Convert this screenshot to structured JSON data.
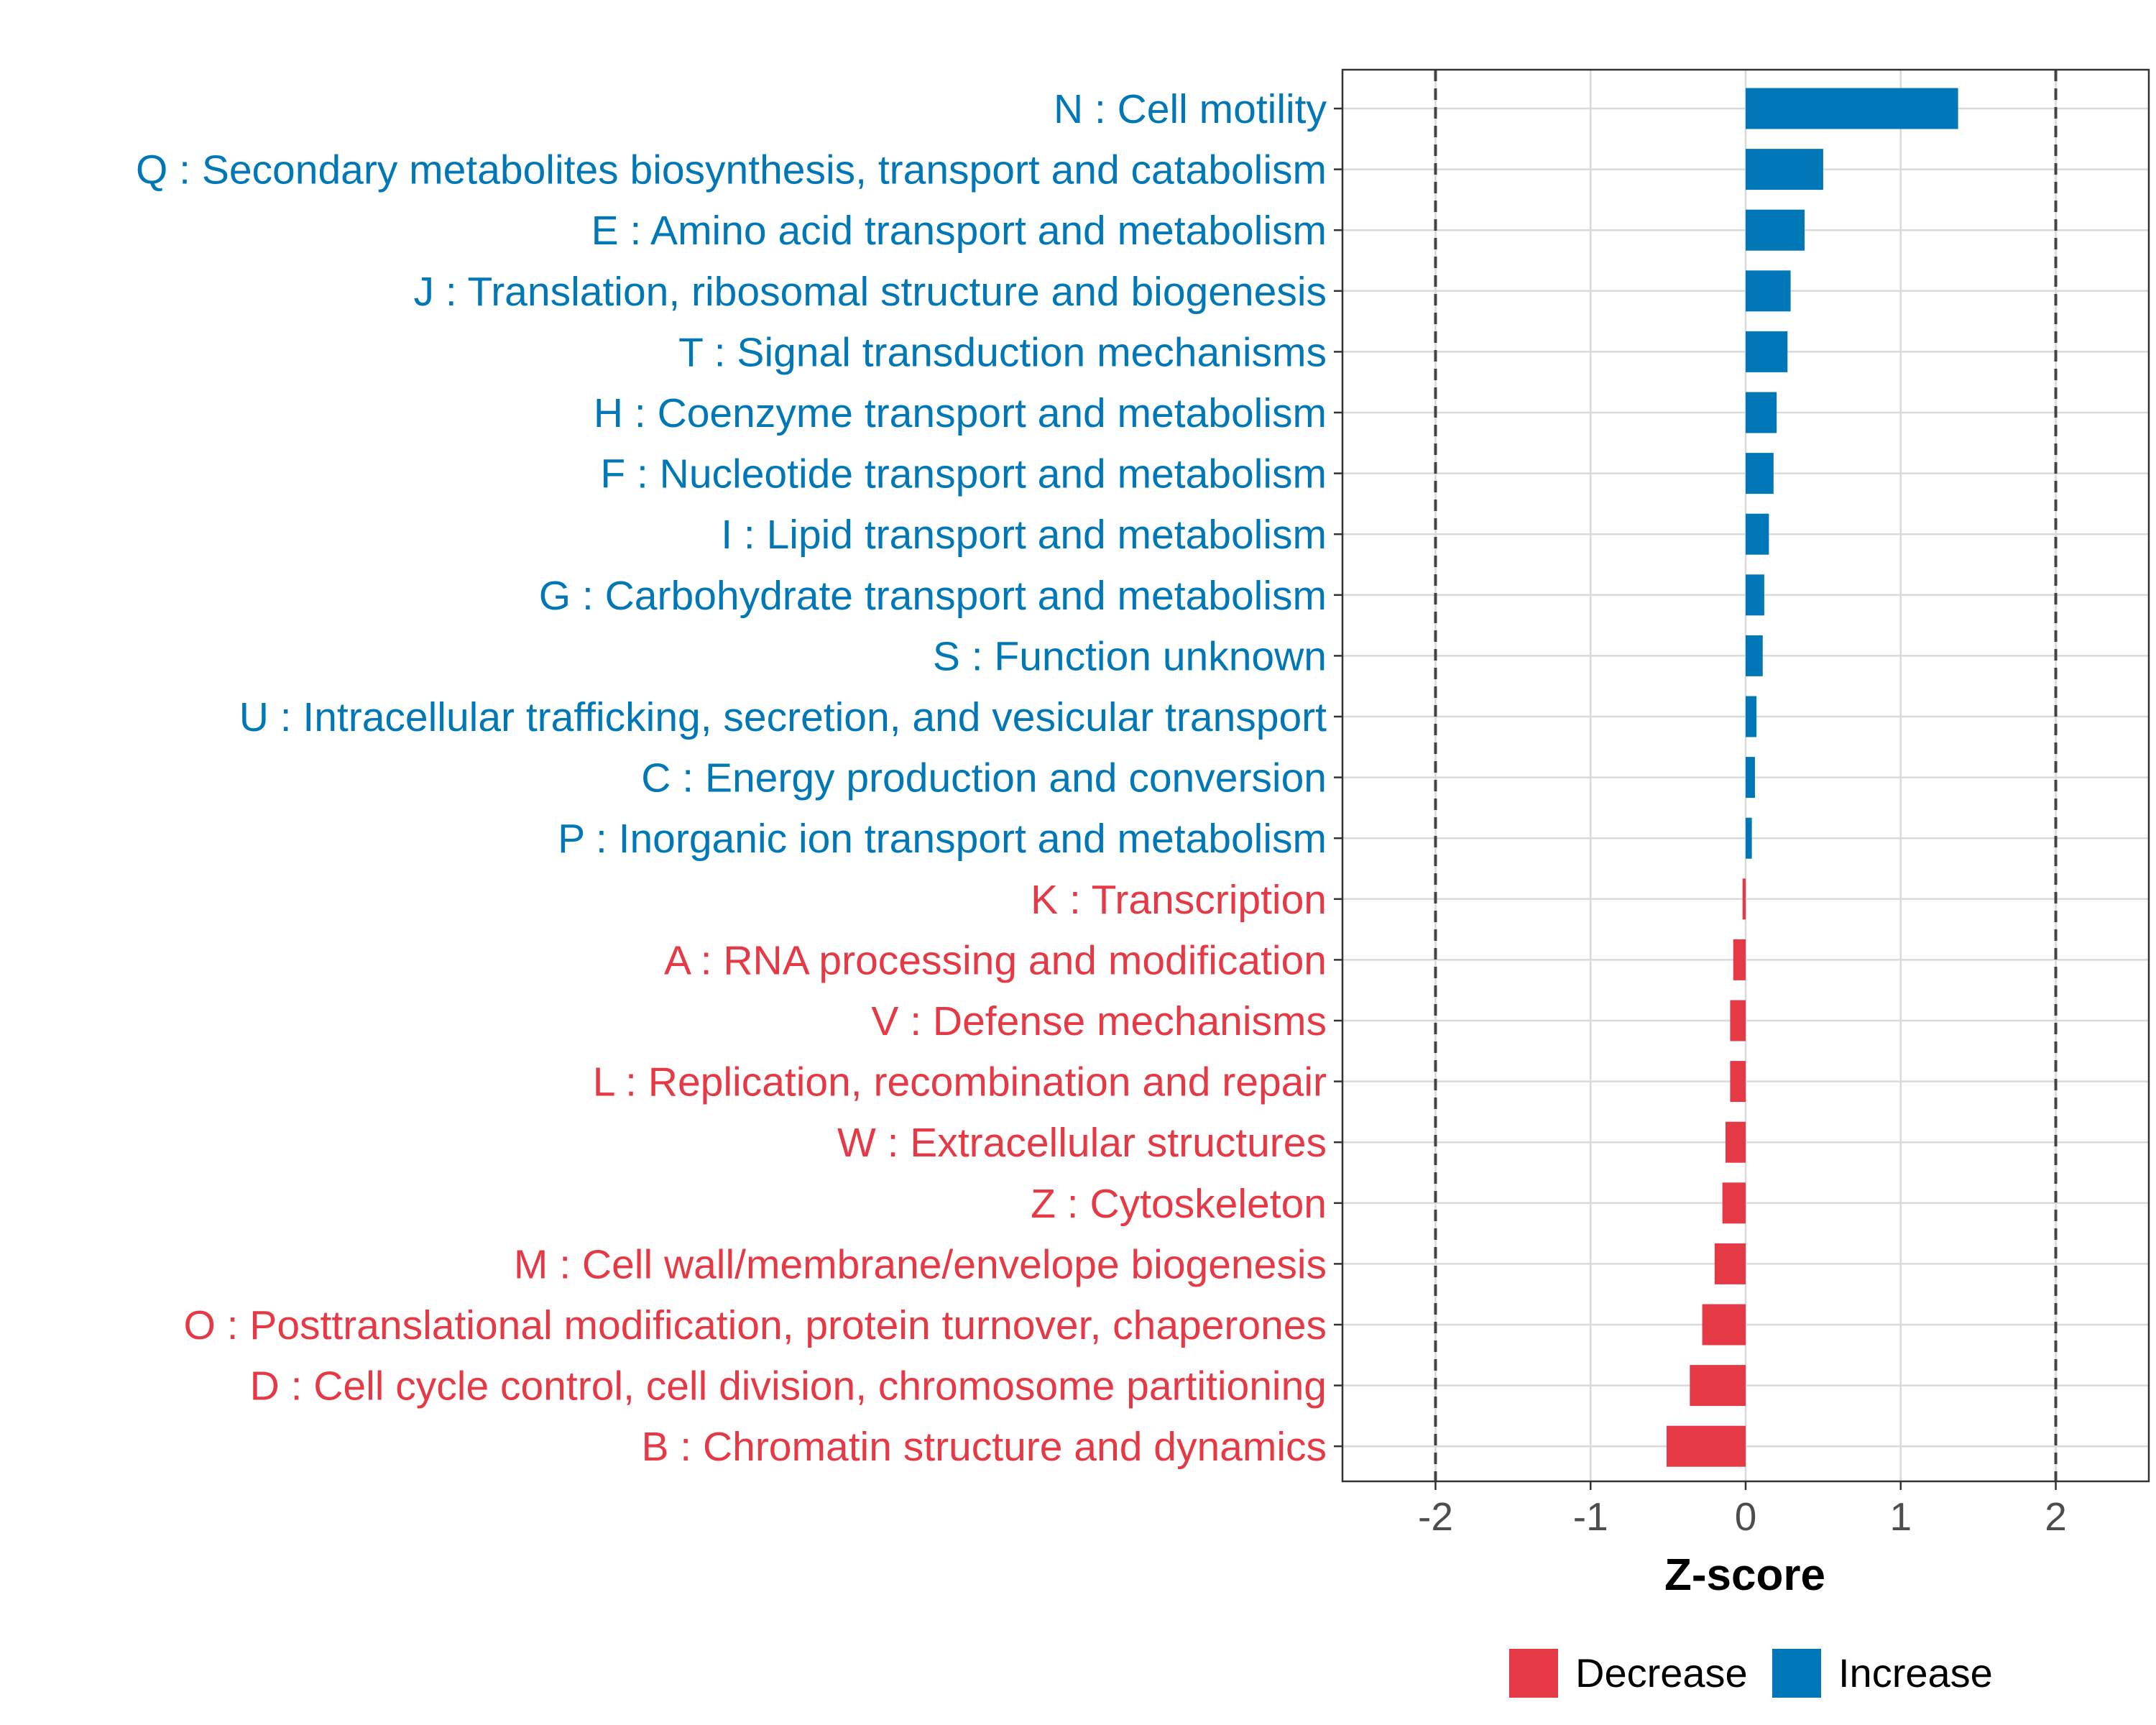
{
  "chart_data": {
    "type": "bar",
    "orientation": "horizontal",
    "title": "",
    "xlabel": "Z-score",
    "ylabel": "",
    "xlim": [
      -2.6,
      2.6
    ],
    "x_ticks": [
      {
        "value": -2,
        "label": "-2"
      },
      {
        "value": -1,
        "label": "-1"
      },
      {
        "value": 0,
        "label": "0"
      },
      {
        "value": 1,
        "label": "1"
      },
      {
        "value": 2,
        "label": "2"
      }
    ],
    "threshold_lines": [
      -2,
      2
    ],
    "grid": true,
    "legend": {
      "position": "bottom",
      "items": [
        {
          "label": "Decrease",
          "color": "#E63946"
        },
        {
          "label": "Increase",
          "color": "#0077B6"
        }
      ]
    },
    "colors": {
      "Increase": "#0077B6",
      "Decrease": "#E63946"
    },
    "categories": [
      {
        "label": "N : Cell motility",
        "value": 1.37,
        "group": "Increase"
      },
      {
        "label": "Q : Secondary metabolites biosynthesis, transport and catabolism",
        "value": 0.5,
        "group": "Increase"
      },
      {
        "label": "E : Amino acid transport and metabolism",
        "value": 0.38,
        "group": "Increase"
      },
      {
        "label": "J : Translation, ribosomal structure and biogenesis",
        "value": 0.29,
        "group": "Increase"
      },
      {
        "label": "T : Signal transduction mechanisms",
        "value": 0.27,
        "group": "Increase"
      },
      {
        "label": "H : Coenzyme transport and metabolism",
        "value": 0.2,
        "group": "Increase"
      },
      {
        "label": "F : Nucleotide transport and metabolism",
        "value": 0.18,
        "group": "Increase"
      },
      {
        "label": "I : Lipid transport and metabolism",
        "value": 0.15,
        "group": "Increase"
      },
      {
        "label": "G : Carbohydrate transport and metabolism",
        "value": 0.12,
        "group": "Increase"
      },
      {
        "label": "S : Function unknown",
        "value": 0.11,
        "group": "Increase"
      },
      {
        "label": "U : Intracellular trafficking, secretion, and vesicular transport",
        "value": 0.07,
        "group": "Increase"
      },
      {
        "label": "C : Energy production and conversion",
        "value": 0.06,
        "group": "Increase"
      },
      {
        "label": "P : Inorganic ion transport and metabolism",
        "value": 0.04,
        "group": "Increase"
      },
      {
        "label": "K : Transcription",
        "value": -0.02,
        "group": "Decrease"
      },
      {
        "label": "A : RNA processing and modification",
        "value": -0.08,
        "group": "Decrease"
      },
      {
        "label": "V : Defense mechanisms",
        "value": -0.1,
        "group": "Decrease"
      },
      {
        "label": "L : Replication, recombination and repair",
        "value": -0.1,
        "group": "Decrease"
      },
      {
        "label": "W : Extracellular structures",
        "value": -0.13,
        "group": "Decrease"
      },
      {
        "label": "Z : Cytoskeleton",
        "value": -0.15,
        "group": "Decrease"
      },
      {
        "label": "M : Cell wall/membrane/envelope biogenesis",
        "value": -0.2,
        "group": "Decrease"
      },
      {
        "label": "O : Posttranslational modification, protein turnover, chaperones",
        "value": -0.28,
        "group": "Decrease"
      },
      {
        "label": "D : Cell cycle control, cell division, chromosome partitioning",
        "value": -0.36,
        "group": "Decrease"
      },
      {
        "label": "B : Chromatin structure and dynamics",
        "value": -0.51,
        "group": "Decrease"
      }
    ]
  }
}
